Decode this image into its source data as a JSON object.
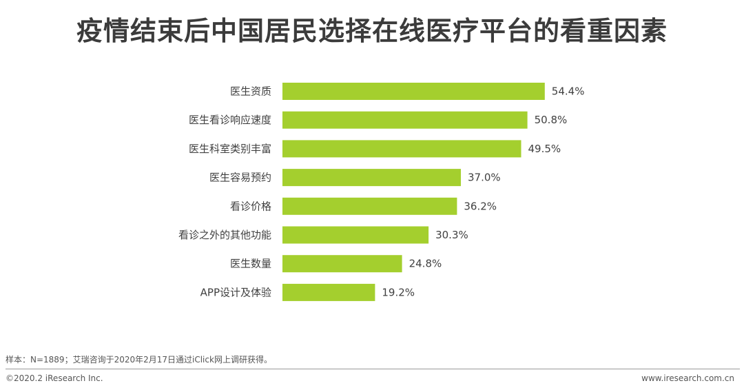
{
  "chart_data": {
    "type": "bar",
    "orientation": "horizontal",
    "title": "疫情结束后中国居民选择在线医疗平台的看重因素",
    "categories": [
      "医生资质",
      "医生看诊响应速度",
      "医生科室类别丰富",
      "医生容易预约",
      "看诊价格",
      "看诊之外的其他功能",
      "医生数量",
      "APP设计及体验"
    ],
    "values": [
      54.4,
      50.8,
      49.5,
      37.0,
      36.2,
      30.3,
      24.8,
      19.2
    ],
    "value_labels": [
      "54.4%",
      "50.8%",
      "49.5%",
      "37.0%",
      "36.2%",
      "30.3%",
      "24.8%",
      "19.2%"
    ],
    "unit": "%",
    "xlim": [
      0,
      60
    ],
    "grid": false,
    "legend": "none",
    "bar_color": "#a4cf2e"
  },
  "source_note": "样本：N=1889；艾瑞咨询于2020年2月17日通过iClick网上调研获得。",
  "copyright": "©2020.2 iResearch Inc.",
  "website": "www.iresearch.com.cn"
}
